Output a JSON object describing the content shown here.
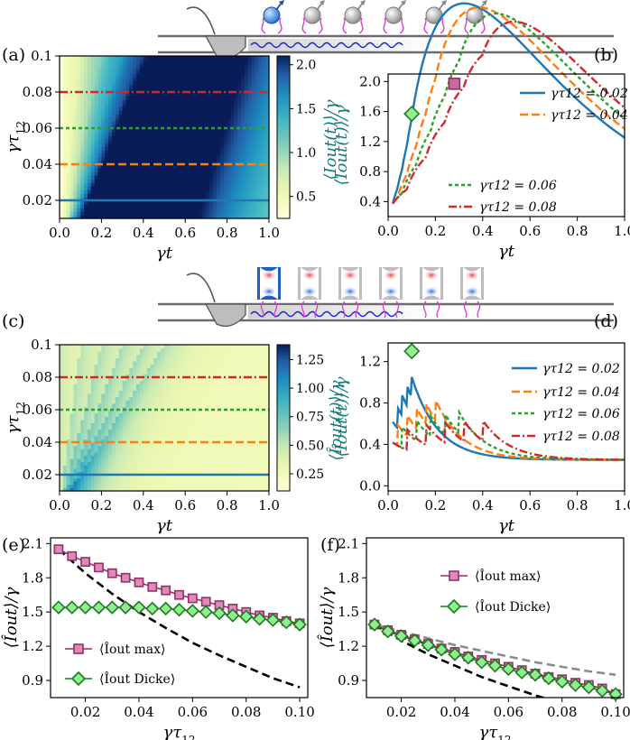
{
  "panel_labels": [
    "(a)",
    "(b)",
    "(c)",
    "(d)",
    "(e)",
    "(f)"
  ],
  "chart_data": [
    {
      "panel": "(a)",
      "type": "heatmap",
      "xlabel": "γt",
      "ylabel": "γτ12",
      "xlim": [
        0.0,
        1.0
      ],
      "ylim": [
        0.01,
        0.1
      ],
      "xticks": [
        "0.0",
        "0.2",
        "0.4",
        "0.6",
        "0.8",
        "1.0"
      ],
      "yticks": [
        "0.02",
        "0.04",
        "0.06",
        "0.08",
        "0.1"
      ],
      "colorbar": {
        "label": "⟨Iout(t)⟩/γ",
        "ticks": [
          "0.5",
          "1.0",
          "1.5",
          "2.0"
        ],
        "range": [
          0.25,
          2.1
        ]
      },
      "guide_lines": [
        {
          "y": 0.02,
          "color": "#1f77b4",
          "style": "solid"
        },
        {
          "y": 0.04,
          "color": "#ff7f0e",
          "style": "dashed"
        },
        {
          "y": 0.06,
          "color": "#2ca02c",
          "style": "dotted"
        },
        {
          "y": 0.08,
          "color": "#d62728",
          "style": "dashdot"
        }
      ]
    },
    {
      "panel": "(b)",
      "type": "line",
      "xlabel": "γt",
      "ylabel": "⟨Iout(t)⟩/γ",
      "xlim": [
        0.0,
        1.0
      ],
      "ylim": [
        0.2,
        2.1
      ],
      "xticks": [
        "0.0",
        "0.2",
        "0.4",
        "0.6",
        "0.8",
        "1.0"
      ],
      "yticks": [
        "0.4",
        "0.8",
        "1.2",
        "1.6",
        "2.0"
      ],
      "series": [
        {
          "name": "γτ12 = 0.02",
          "color": "#1f77b4",
          "style": "solid",
          "tau": 0.02
        },
        {
          "name": "γτ12 = 0.04",
          "color": "#ff7f0e",
          "style": "dashed",
          "tau": 0.04
        },
        {
          "name": "γτ12 = 0.06",
          "color": "#2ca02c",
          "style": "dotted",
          "tau": 0.06
        },
        {
          "name": "γτ12 = 0.08",
          "color": "#d62728",
          "style": "dashdot",
          "tau": 0.08
        }
      ],
      "markers": [
        {
          "x": 0.28,
          "y": 1.97,
          "shape": "square",
          "color": "#c86b9e"
        },
        {
          "x": 0.1,
          "y": 1.57,
          "shape": "diamond",
          "color": "#90ee90"
        }
      ]
    },
    {
      "panel": "(c)",
      "type": "heatmap",
      "xlabel": "γt",
      "ylabel": "γτ12",
      "xlim": [
        0.0,
        1.0
      ],
      "ylim": [
        0.01,
        0.1
      ],
      "xticks": [
        "0.0",
        "0.2",
        "0.4",
        "0.6",
        "0.8",
        "1.0"
      ],
      "yticks": [
        "0.02",
        "0.04",
        "0.06",
        "0.08",
        "0.1"
      ],
      "colorbar": {
        "label": "⟨Îout(t)⟩/γ",
        "ticks": [
          "0.25",
          "0.50",
          "0.75",
          "1.00",
          "1.25"
        ],
        "range": [
          0.1,
          1.38
        ]
      },
      "guide_lines": [
        {
          "y": 0.02,
          "color": "#1f77b4",
          "style": "solid"
        },
        {
          "y": 0.04,
          "color": "#ff7f0e",
          "style": "dashed"
        },
        {
          "y": 0.06,
          "color": "#2ca02c",
          "style": "dotted"
        },
        {
          "y": 0.08,
          "color": "#d62728",
          "style": "dashdot"
        }
      ]
    },
    {
      "panel": "(d)",
      "type": "line",
      "xlabel": "γt",
      "ylabel": "⟨Îout(t)⟩/γ",
      "xlim": [
        0.0,
        1.0
      ],
      "ylim": [
        -0.05,
        1.38
      ],
      "xticks": [
        "0.0",
        "0.2",
        "0.4",
        "0.6",
        "0.8",
        "1.0"
      ],
      "yticks": [
        "0.0",
        "0.4",
        "0.8",
        "1.2"
      ],
      "series": [
        {
          "name": "γτ12 = 0.02",
          "color": "#1f77b4",
          "style": "solid",
          "tau": 0.02
        },
        {
          "name": "γτ12 = 0.04",
          "color": "#ff7f0e",
          "style": "dashed",
          "tau": 0.04
        },
        {
          "name": "γτ12 = 0.06",
          "color": "#2ca02c",
          "style": "dotted",
          "tau": 0.06
        },
        {
          "name": "γτ12 = 0.08",
          "color": "#d62728",
          "style": "dashdot",
          "tau": 0.08
        }
      ],
      "markers": [
        {
          "x": 0.1,
          "y": 1.3,
          "shape": "diamond",
          "color": "#90ee90"
        }
      ]
    },
    {
      "panel": "(e)",
      "type": "line",
      "xlabel": "γτ12",
      "ylabel": "⟨Îout⟩/γ",
      "xlim": [
        0.007,
        0.103
      ],
      "ylim": [
        0.75,
        2.15
      ],
      "xticks": [
        "0.02",
        "0.04",
        "0.06",
        "0.08",
        "0.10"
      ],
      "yticks": [
        "0.9",
        "1.2",
        "1.5",
        "1.8",
        "2.1"
      ],
      "series": [
        {
          "name": "⟨Îout max⟩",
          "color": "#9b2c68",
          "marker": "square",
          "fill": "#d98cbc",
          "x": [
            0.01,
            0.015,
            0.02,
            0.025,
            0.03,
            0.035,
            0.04,
            0.045,
            0.05,
            0.055,
            0.06,
            0.065,
            0.07,
            0.075,
            0.08,
            0.085,
            0.09,
            0.095,
            0.1
          ],
          "y": [
            2.05,
            1.99,
            1.94,
            1.89,
            1.84,
            1.8,
            1.76,
            1.72,
            1.69,
            1.65,
            1.62,
            1.59,
            1.56,
            1.53,
            1.5,
            1.47,
            1.45,
            1.42,
            1.4
          ]
        },
        {
          "name": "⟨Îout Dicke⟩",
          "color": "#1e7a1e",
          "marker": "diamond",
          "fill": "#90ee90",
          "x": [
            0.01,
            0.015,
            0.02,
            0.025,
            0.03,
            0.035,
            0.04,
            0.045,
            0.05,
            0.055,
            0.06,
            0.065,
            0.07,
            0.075,
            0.08,
            0.085,
            0.09,
            0.095,
            0.1
          ],
          "y": [
            1.54,
            1.54,
            1.54,
            1.54,
            1.54,
            1.54,
            1.54,
            1.53,
            1.53,
            1.52,
            1.51,
            1.5,
            1.49,
            1.47,
            1.46,
            1.44,
            1.43,
            1.41,
            1.39
          ]
        },
        {
          "name": "",
          "color": "#000000",
          "style": "dashed",
          "x": [
            0.01,
            0.02,
            0.03,
            0.04,
            0.05,
            0.06,
            0.07,
            0.08,
            0.09,
            0.1
          ],
          "y": [
            2.05,
            1.84,
            1.66,
            1.5,
            1.36,
            1.23,
            1.12,
            1.02,
            0.92,
            0.84
          ]
        }
      ]
    },
    {
      "panel": "(f)",
      "type": "line",
      "xlabel": "γτ12",
      "ylabel": "⟨Îout⟩/γ",
      "xlim": [
        0.007,
        0.103
      ],
      "ylim": [
        0.75,
        2.15
      ],
      "xticks": [
        "0.02",
        "0.04",
        "0.06",
        "0.08",
        "0.10"
      ],
      "yticks": [
        "0.9",
        "1.2",
        "1.5",
        "1.8",
        "2.1"
      ],
      "series": [
        {
          "name": "⟨Îout max⟩",
          "color": "#9b2c68",
          "marker": "square",
          "fill": "#d98cbc",
          "x": [
            0.01,
            0.015,
            0.02,
            0.025,
            0.03,
            0.035,
            0.04,
            0.045,
            0.05,
            0.055,
            0.06,
            0.065,
            0.07,
            0.075,
            0.08,
            0.085,
            0.09,
            0.095,
            0.1
          ],
          "y": [
            1.39,
            1.34,
            1.3,
            1.26,
            1.22,
            1.18,
            1.15,
            1.11,
            1.08,
            1.05,
            1.02,
            0.99,
            0.96,
            0.93,
            0.91,
            0.88,
            0.86,
            0.83,
            0.78
          ]
        },
        {
          "name": "⟨Îout Dicke⟩",
          "color": "#1e7a1e",
          "marker": "diamond",
          "fill": "#90ee90",
          "x": [
            0.01,
            0.015,
            0.02,
            0.025,
            0.03,
            0.035,
            0.04,
            0.045,
            0.05,
            0.055,
            0.06,
            0.065,
            0.07,
            0.075,
            0.08,
            0.085,
            0.09,
            0.095,
            0.1
          ],
          "y": [
            1.39,
            1.33,
            1.29,
            1.25,
            1.21,
            1.17,
            1.13,
            1.1,
            1.06,
            1.03,
            1.0,
            0.97,
            0.95,
            0.92,
            0.89,
            0.86,
            0.84,
            0.81,
            0.78
          ]
        },
        {
          "name": "",
          "color": "#000000",
          "style": "dashed",
          "x": [
            0.01,
            0.02,
            0.03,
            0.04,
            0.05,
            0.06,
            0.07,
            0.08,
            0.09,
            0.1
          ],
          "y": [
            1.39,
            1.25,
            1.13,
            1.03,
            0.93,
            0.85,
            0.77,
            0.7,
            0.64,
            0.58
          ]
        },
        {
          "name": "",
          "color": "#8c8c8c",
          "style": "dashed",
          "x": [
            0.01,
            0.02,
            0.03,
            0.04,
            0.05,
            0.06,
            0.07,
            0.08,
            0.09,
            0.1
          ],
          "y": [
            1.39,
            1.33,
            1.27,
            1.21,
            1.16,
            1.11,
            1.06,
            1.02,
            0.98,
            0.95
          ]
        }
      ]
    }
  ]
}
